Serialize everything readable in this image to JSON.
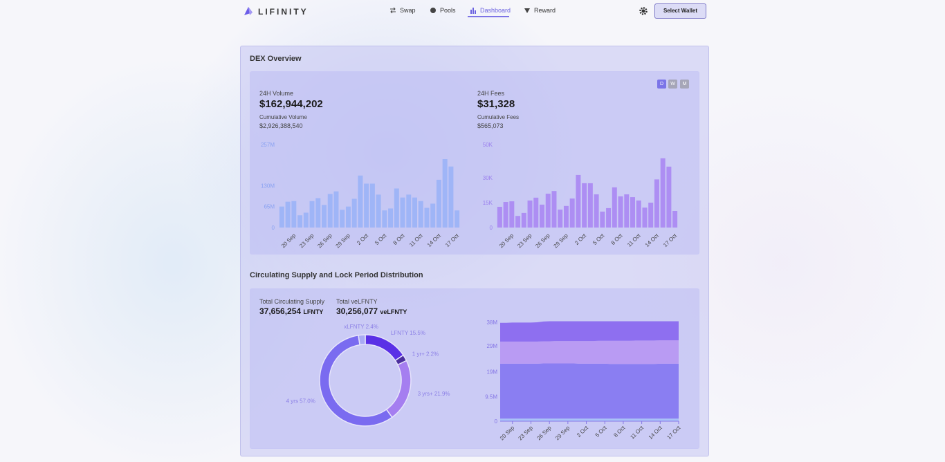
{
  "nav": {
    "brand": "LIFINITY",
    "links": [
      "Swap",
      "Pools",
      "Dashboard",
      "Reward"
    ],
    "wallet": "Select Wallet"
  },
  "overview": {
    "title": "DEX Overview",
    "volume_label": "24H Volume",
    "volume": "$162,944,202",
    "cum_volume_label": "Cumulative Volume",
    "cum_volume": "$2,926,388,540",
    "fees_label": "24H Fees",
    "fees": "$31,328",
    "cum_fees_label": "Cumulative Fees",
    "cum_fees": "$565,073",
    "periods": [
      "D",
      "W",
      "M"
    ]
  },
  "volume_chart": {
    "type": "bar",
    "color": "#9fb5f7",
    "tick_color": "#8aa2f2",
    "categories": [
      null,
      null,
      "20 Sep",
      null,
      null,
      "23 Sep",
      null,
      null,
      "26 Sep",
      null,
      null,
      "29 Sep",
      null,
      null,
      "2 Oct",
      null,
      null,
      "5 Oct",
      null,
      null,
      "8 Oct",
      null,
      null,
      "11 Oct",
      null,
      null,
      "14 Oct",
      null,
      null,
      "17 Oct"
    ],
    "values": [
      65,
      80,
      82,
      38,
      46,
      82,
      91,
      70,
      104,
      112,
      55,
      65,
      89,
      161,
      136,
      136,
      102,
      53,
      59,
      121,
      93,
      102,
      93,
      82,
      61,
      74,
      148,
      212,
      189,
      53
    ],
    "ylim": [
      0,
      257
    ],
    "yticks": [
      0,
      {
        "value": 65,
        "label": "65M"
      },
      {
        "value": 130,
        "label": "130M"
      },
      {
        "value": 257,
        "label": "257M"
      }
    ]
  },
  "fees_chart": {
    "type": "bar",
    "color": "#ad8ef3",
    "tick_color": "#9b80ee",
    "categories": [
      null,
      null,
      "20 Sep",
      null,
      null,
      "23 Sep",
      null,
      null,
      "26 Sep",
      null,
      null,
      "29 Sep",
      null,
      null,
      "2 Oct",
      null,
      null,
      "5 Oct",
      null,
      null,
      "8 Oct",
      null,
      null,
      "11 Oct",
      null,
      null,
      "14 Oct",
      null,
      null,
      "17 Oct"
    ],
    "values": [
      12.5,
      15.4,
      15.8,
      7,
      8.8,
      16.3,
      18,
      13.8,
      20.4,
      22,
      10.8,
      13,
      17.5,
      31.7,
      26.7,
      26.7,
      20,
      9.6,
      11.7,
      24.2,
      18.8,
      20,
      18.3,
      16.3,
      12,
      15,
      29,
      41.7,
      36.7,
      10
    ],
    "ylim": [
      0,
      50
    ],
    "yticks": [
      0,
      {
        "value": 15,
        "label": "15K"
      },
      {
        "value": 30,
        "label": "30K"
      },
      {
        "value": 50,
        "label": "50K"
      }
    ]
  },
  "supply": {
    "title": "Circulating Supply and Lock Period Distribution",
    "total_label": "Total Circulating Supply",
    "total": "37,656,254",
    "total_unit": "LFNTY",
    "ve_label": "Total veLFNTY",
    "ve_total": "30,256,077",
    "ve_unit": "veLFNTY"
  },
  "donut_chart": {
    "type": "donut",
    "values": [
      15.5,
      2.2,
      21.9,
      57.0,
      2.4
    ],
    "value_labels": [
      "LFNTY 15.5%",
      "1 yr+ 2.2%",
      "3 yrs+ 21.9%",
      "4 yrs 57.0%",
      "xLFNTY 2.4%"
    ],
    "colors": [
      "#5a30e6",
      "#4b2f9e",
      "#a57ef0",
      "#7a6bf0",
      "#a9aaf4"
    ],
    "label_color": "#8b7fe6"
  },
  "area_chart": {
    "type": "stacked_area",
    "tick_color": "#8677e6",
    "categories": [
      null,
      null,
      "20 Sep",
      null,
      null,
      "23 Sep",
      null,
      null,
      "26 Sep",
      null,
      null,
      "29 Sep",
      null,
      null,
      "2 Oct",
      null,
      null,
      "5 Oct",
      null,
      null,
      "8 Oct",
      null,
      null,
      "11 Oct",
      null,
      null,
      "14 Oct",
      null,
      null,
      "17 Oct"
    ],
    "series": [
      {
        "color": "#a9c2f8",
        "values": [
          1,
          1,
          1,
          1,
          1,
          1,
          1,
          1,
          1,
          1,
          1,
          1,
          1,
          1,
          1,
          1,
          1,
          1,
          1,
          1,
          1,
          1,
          1,
          1,
          1,
          1,
          1,
          1,
          1,
          1
        ]
      },
      {
        "color": "#8a7ef2",
        "values": [
          21.1,
          21.1,
          21.1,
          21.1,
          21.1,
          21.1,
          21.1,
          21.2,
          21.2,
          21.2,
          21.2,
          21.2,
          21.2,
          21.1,
          21.1,
          21.1,
          21.1,
          21.1,
          21.0,
          21.0,
          21.0,
          21.0,
          21.0,
          21.0,
          21.0,
          21.0,
          21.1,
          21.1,
          21.1,
          21.1
        ]
      },
      {
        "color": "#b99bf3",
        "values": [
          8.5,
          8.5,
          8.5,
          8.5,
          8.5,
          8.5,
          8.5,
          8.5,
          8.5,
          8.6,
          8.6,
          8.6,
          8.6,
          8.7,
          8.7,
          8.7,
          8.8,
          8.8,
          8.9,
          8.9,
          8.9,
          8.9,
          9.0,
          9.0,
          9.0,
          9.0,
          9.0,
          9.0,
          9.0,
          9.0
        ]
      },
      {
        "color": "#8e6ff0",
        "values": [
          7.2,
          7.2,
          7.3,
          7.3,
          7.3,
          7.3,
          7.4,
          7.6,
          7.7,
          7.6,
          7.6,
          7.6,
          7.6,
          7.6,
          7.6,
          7.6,
          7.5,
          7.5,
          7.5,
          7.5,
          7.5,
          7.5,
          7.4,
          7.4,
          7.4,
          7.4,
          7.3,
          7.3,
          7.3,
          7.3
        ]
      }
    ],
    "ylim": [
      0,
      38
    ],
    "yticks": [
      0,
      {
        "value": 9.5,
        "label": "9.5M"
      },
      {
        "value": 19,
        "label": "19M"
      },
      {
        "value": 29,
        "label": "29M"
      },
      {
        "value": 38,
        "label": "38M"
      }
    ]
  }
}
